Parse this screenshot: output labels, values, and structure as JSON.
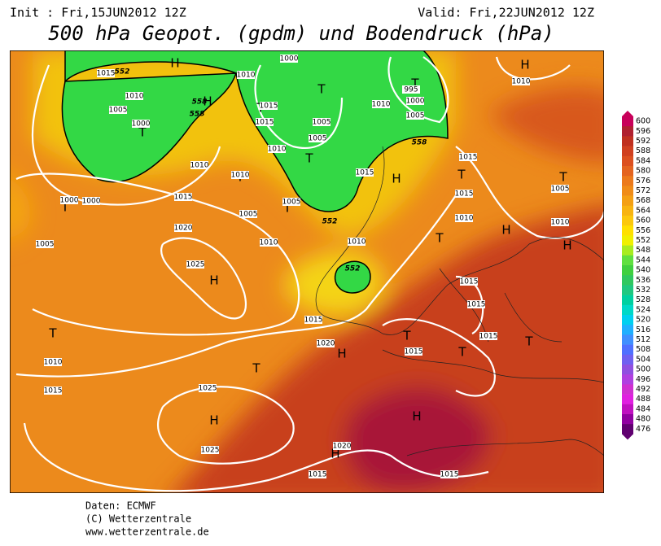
{
  "header": {
    "init": "Init : Fri,15JUN2012  12Z",
    "valid": "Valid: Fri,22JUN2012  12Z",
    "title": "500 hPa Geopot. (gpdm) und Bodendruck (hPa)"
  },
  "legend": {
    "labels": [
      600,
      596,
      592,
      588,
      584,
      580,
      576,
      572,
      568,
      564,
      560,
      556,
      552,
      548,
      544,
      540,
      536,
      532,
      528,
      524,
      520,
      516,
      512,
      508,
      504,
      500,
      496,
      492,
      488,
      484,
      480,
      476
    ]
  },
  "map": {
    "pressure_systems": [
      "H",
      "H",
      "H",
      "H",
      "H",
      "H",
      "H",
      "H",
      "H",
      "H",
      "H",
      "T",
      "T",
      "T",
      "T",
      "T",
      "T",
      "T",
      "T",
      "T",
      "T",
      "T",
      "T",
      "T",
      "T",
      "T",
      "T"
    ],
    "isobar_labels": [
      1015,
      1010,
      1005,
      1000,
      1000,
      1010,
      1015,
      1015,
      1010,
      1005,
      1005,
      1010,
      1005,
      1000,
      995,
      1010,
      1015,
      1015,
      1015,
      1010,
      1005,
      1010,
      1010,
      1010,
      1015,
      1005,
      1005,
      1010,
      1010,
      1020,
      1025,
      1000,
      1000,
      1005,
      1015,
      1020,
      1015,
      1015,
      1015,
      1015,
      1010,
      1015,
      1025,
      1025,
      1015,
      1020,
      1015
    ],
    "contour_labels": [
      552,
      558,
      558,
      558,
      552,
      552
    ]
  },
  "footer": {
    "lines": [
      "Daten: ECMWF",
      "(C) Wetterzentrale",
      "www.wetterzentrale.de"
    ]
  }
}
